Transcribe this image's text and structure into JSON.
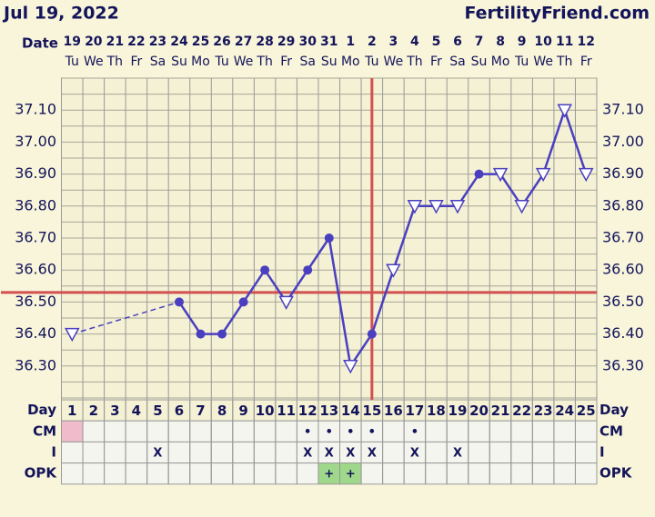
{
  "chart_data": {
    "type": "line",
    "title": "Jul 19, 2022",
    "site": "FertilityFriend.com",
    "date_label": "Date",
    "dates": [
      19,
      20,
      21,
      22,
      23,
      24,
      25,
      26,
      27,
      28,
      29,
      30,
      31,
      1,
      2,
      3,
      4,
      5,
      6,
      7,
      8,
      9,
      10,
      11,
      12
    ],
    "weekdays": [
      "Tu",
      "We",
      "Th",
      "Fr",
      "Sa",
      "Su",
      "Mo",
      "Tu",
      "We",
      "Th",
      "Fr",
      "Sa",
      "Su",
      "Mo",
      "Tu",
      "We",
      "Th",
      "Fr",
      "Sa",
      "Su",
      "Mo",
      "Tu",
      "We",
      "Th",
      "Fr"
    ],
    "day_label": "Day",
    "categories": [
      1,
      2,
      3,
      4,
      5,
      6,
      7,
      8,
      9,
      10,
      11,
      12,
      13,
      14,
      15,
      16,
      17,
      18,
      19,
      20,
      21,
      22,
      23,
      24,
      25
    ],
    "series": [
      {
        "color": "#4a3fc0",
        "values": [
          36.4,
          null,
          null,
          null,
          null,
          36.5,
          36.4,
          36.4,
          36.5,
          36.6,
          36.5,
          36.6,
          36.7,
          36.3,
          36.4,
          36.6,
          36.8,
          36.8,
          36.8,
          36.9,
          36.9,
          36.8,
          36.9,
          37.1,
          36.9
        ],
        "markers": [
          "triangle",
          null,
          null,
          null,
          null,
          "dot",
          "dot",
          "dot",
          "dot",
          "dot",
          "triangle",
          "dot",
          "dot",
          "triangle",
          "dot",
          "triangle",
          "triangle",
          "triangle",
          "triangle",
          "dot",
          "triangle",
          "triangle",
          "triangle",
          "triangle",
          "triangle"
        ]
      }
    ],
    "ylim": [
      36.2,
      37.2
    ],
    "yticks": [
      {
        "value": 36.3,
        "label": "36.30"
      },
      {
        "value": 36.4,
        "label": "36.40"
      },
      {
        "value": 36.5,
        "label": "36.50"
      },
      {
        "value": 36.6,
        "label": "36.60"
      },
      {
        "value": 36.7,
        "label": "36.70"
      },
      {
        "value": 36.8,
        "label": "36.80"
      },
      {
        "value": 36.9,
        "label": "36.90"
      },
      {
        "value": 37.0,
        "label": "37.00"
      },
      {
        "value": 37.1,
        "label": "37.10"
      }
    ],
    "ygrid": [
      36.2,
      36.25,
      36.3,
      36.35,
      36.4,
      36.45,
      36.5,
      36.55,
      36.6,
      36.65,
      36.7,
      36.75,
      36.8,
      36.85,
      36.9,
      36.95,
      37.0,
      37.05,
      37.1,
      37.15,
      37.2
    ],
    "coverline": 36.53,
    "ovulation_day": 15,
    "reference_color": "#d45050",
    "rows": [
      {
        "label": "CM",
        "highlight_color": "#f0bccb",
        "highlight": [
          1
        ],
        "cells": [
          null,
          null,
          null,
          null,
          null,
          null,
          null,
          null,
          null,
          null,
          null,
          "•",
          "•",
          "•",
          "•",
          null,
          "•",
          null,
          null,
          null,
          null,
          null,
          null,
          null,
          null
        ]
      },
      {
        "label": "I",
        "cells": [
          null,
          null,
          null,
          null,
          "X",
          null,
          null,
          null,
          null,
          null,
          null,
          "X",
          "X",
          "X",
          "X",
          null,
          "X",
          null,
          "X",
          null,
          null,
          null,
          null,
          null,
          null
        ]
      },
      {
        "label": "OPK",
        "highlight_color": "#9fd88a",
        "highlight": [
          13,
          14
        ],
        "cells": [
          null,
          null,
          null,
          null,
          null,
          null,
          null,
          null,
          null,
          null,
          null,
          null,
          "+",
          "+",
          null,
          null,
          null,
          null,
          null,
          null,
          null,
          null,
          null,
          null,
          null
        ]
      }
    ]
  }
}
